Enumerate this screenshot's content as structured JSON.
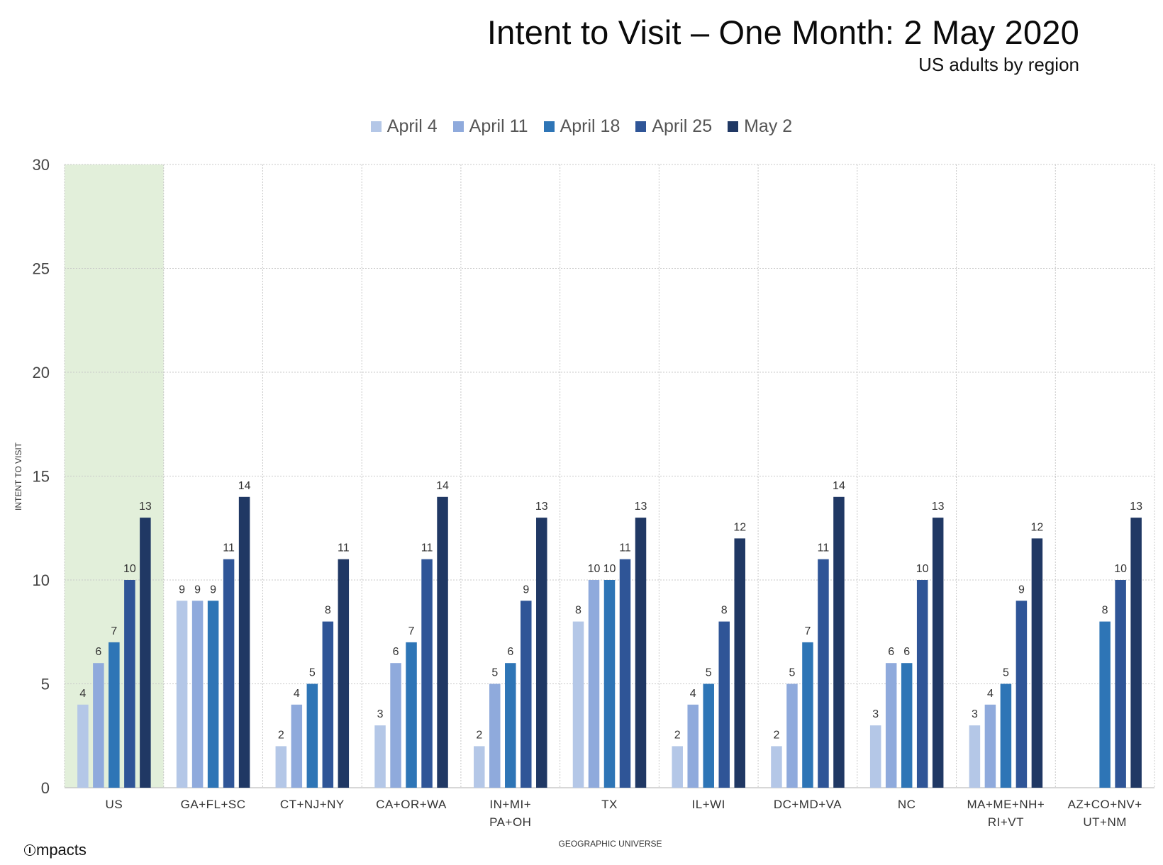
{
  "title": "Intent to Visit – One Month: 2 May 2020",
  "subtitle": "US adults by region",
  "logo": "mpacts",
  "chart_data": {
    "type": "bar",
    "title": "Intent to Visit – One Month: 2 May 2020",
    "subtitle": "US adults by region",
    "xlabel": "GEOGRAPHIC UNIVERSE",
    "ylabel": "INTENT TO VISIT",
    "ylim": [
      0,
      30
    ],
    "yticks": [
      0,
      5,
      10,
      15,
      20,
      25,
      30
    ],
    "grid": true,
    "legend_position": "top-center",
    "highlighted_category": "US",
    "highlight_color": "#e2efda",
    "categories": [
      [
        "US"
      ],
      [
        "GA+FL+SC"
      ],
      [
        "CT+NJ+NY"
      ],
      [
        "CA+OR+WA"
      ],
      [
        "IN+MI+",
        "PA+OH"
      ],
      [
        "TX"
      ],
      [
        "IL+WI"
      ],
      [
        "DC+MD+VA"
      ],
      [
        "NC"
      ],
      [
        "MA+ME+NH+",
        "RI+VT"
      ],
      [
        "AZ+CO+NV+",
        "UT+NM"
      ]
    ],
    "series": [
      {
        "name": "April 4",
        "color": "#b4c7e7",
        "values": [
          4,
          9,
          2,
          3,
          2,
          8,
          2,
          2,
          3,
          3,
          null
        ]
      },
      {
        "name": "April 11",
        "color": "#8faadc",
        "values": [
          6,
          9,
          4,
          6,
          5,
          10,
          4,
          5,
          6,
          4,
          null
        ]
      },
      {
        "name": "April 18",
        "color": "#2e75b6",
        "values": [
          7,
          9,
          5,
          7,
          6,
          10,
          5,
          7,
          6,
          5,
          8
        ]
      },
      {
        "name": "April 25",
        "color": "#2f5597",
        "values": [
          10,
          11,
          8,
          11,
          9,
          11,
          8,
          11,
          10,
          9,
          10
        ]
      },
      {
        "name": "May 2",
        "color": "#203864",
        "values": [
          13,
          14,
          11,
          14,
          13,
          13,
          12,
          14,
          13,
          12,
          13
        ]
      }
    ]
  }
}
